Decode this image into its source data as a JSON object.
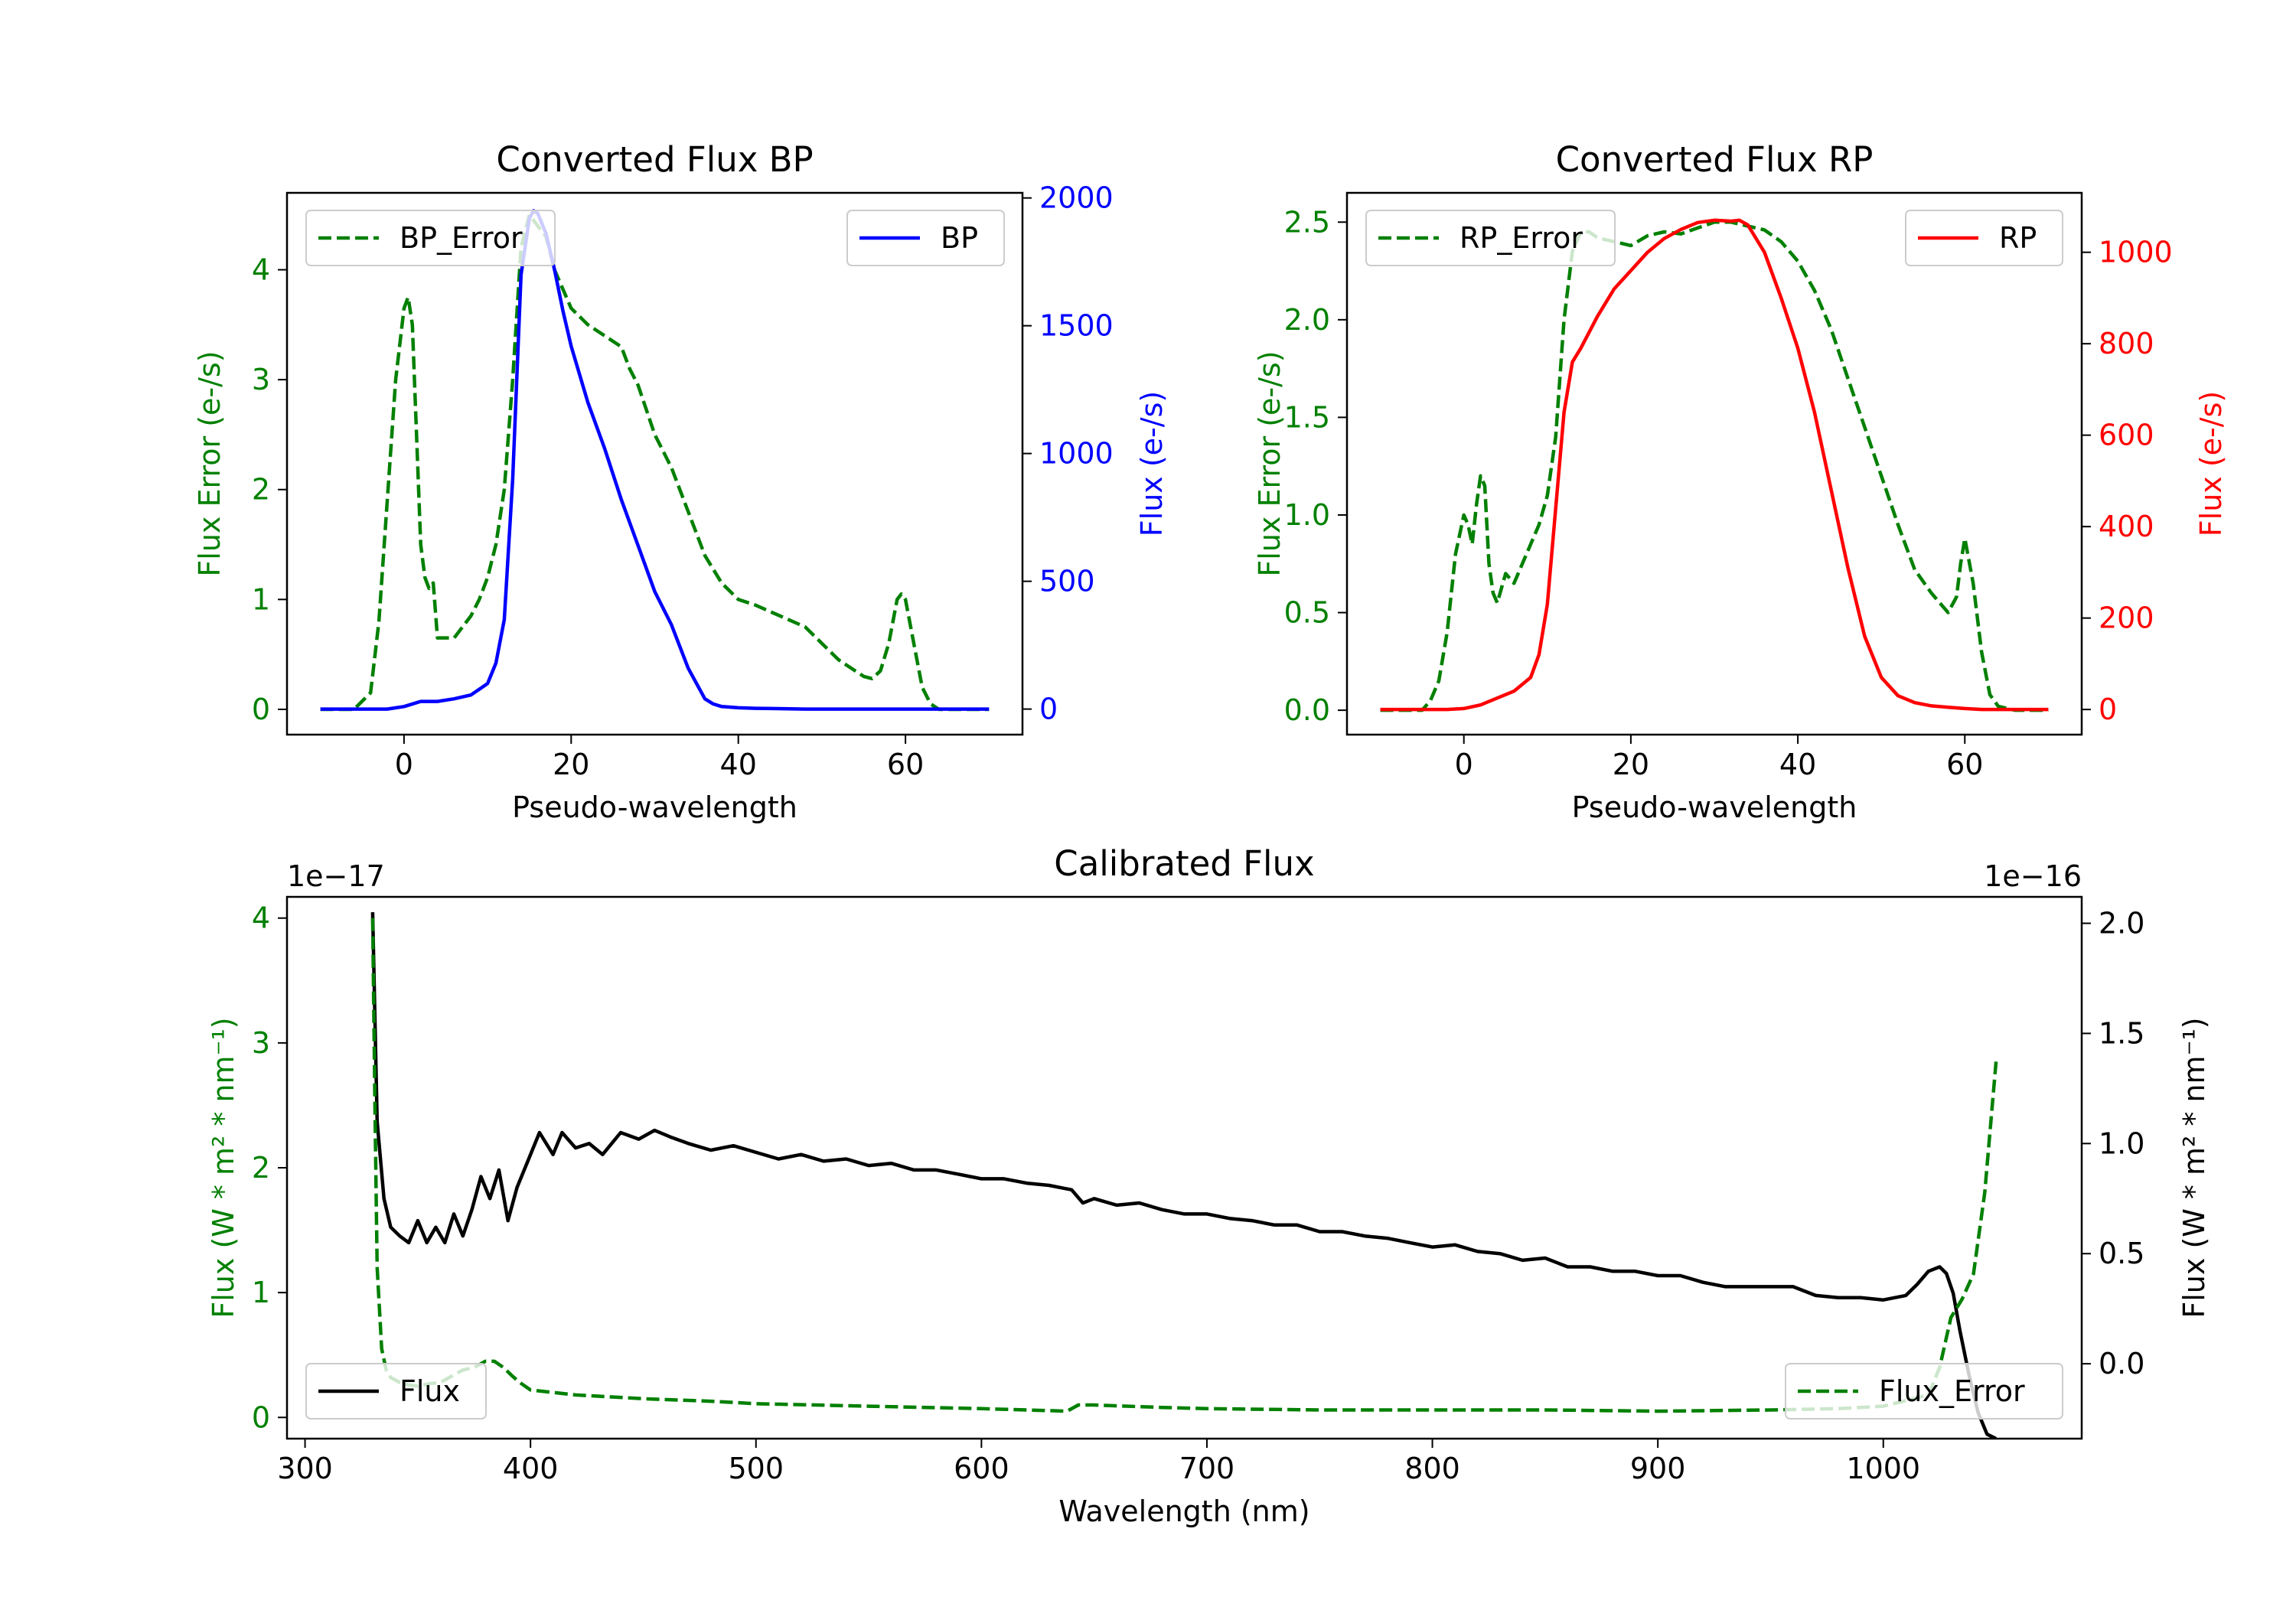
{
  "chart_data": [
    {
      "type": "line",
      "title": "Converted Flux BP",
      "xlabel": "Pseudo-wavelength",
      "xlim": [
        -14,
        74
      ],
      "xticks": [
        0,
        20,
        40,
        60
      ],
      "y_left": {
        "label": "Flux Error (e-/s)",
        "color": "#008000",
        "lim": [
          -0.23,
          4.7
        ],
        "ticks": [
          0,
          1,
          2,
          3,
          4
        ]
      },
      "y_right": {
        "label": "Flux (e-/s)",
        "color": "#0000ff",
        "lim": [
          -100,
          2020
        ],
        "ticks": [
          0,
          500,
          1000,
          1500,
          2000
        ]
      },
      "series": [
        {
          "name": "BP_Error",
          "axis": "left",
          "color": "#008000",
          "dash": true,
          "x": [
            -10,
            -6,
            -4,
            -3,
            -2,
            -1,
            0,
            0.5,
            1,
            2,
            2.5,
            3,
            3.5,
            4,
            5,
            6,
            8,
            9,
            10,
            11,
            12,
            13,
            14,
            15,
            16,
            17,
            18,
            20,
            22,
            24,
            26,
            27,
            28,
            30,
            32,
            34,
            36,
            38,
            40,
            42,
            45,
            48,
            50,
            52,
            54,
            55,
            56,
            57,
            58,
            59,
            59.5,
            60,
            61,
            62,
            63,
            64,
            66,
            70
          ],
          "values": [
            0,
            0,
            0.15,
            0.8,
            1.9,
            3.0,
            3.65,
            3.75,
            3.5,
            1.5,
            1.2,
            1.1,
            1.15,
            0.65,
            0.65,
            0.65,
            0.85,
            1.0,
            1.2,
            1.5,
            2.0,
            3.0,
            4.2,
            4.5,
            4.4,
            4.3,
            4.0,
            3.65,
            3.5,
            3.4,
            3.3,
            3.1,
            2.95,
            2.5,
            2.2,
            1.8,
            1.4,
            1.15,
            1.0,
            0.95,
            0.85,
            0.75,
            0.6,
            0.45,
            0.35,
            0.3,
            0.28,
            0.35,
            0.6,
            1.0,
            1.05,
            1.0,
            0.6,
            0.2,
            0.05,
            0,
            0,
            0
          ]
        },
        {
          "name": "BP",
          "axis": "right",
          "color": "#0000ff",
          "dash": false,
          "x": [
            -10,
            -6,
            -4,
            -2,
            0,
            2,
            4,
            6,
            8,
            10,
            11,
            12,
            13,
            14,
            15,
            15.5,
            16,
            17,
            18,
            19,
            20,
            22,
            24,
            26,
            28,
            30,
            32,
            34,
            36,
            37,
            38,
            40,
            42,
            44,
            46,
            48,
            50,
            52,
            54,
            56,
            58,
            60,
            62,
            66,
            70
          ],
          "values": [
            0,
            0,
            0,
            0,
            10,
            30,
            30,
            40,
            55,
            100,
            180,
            350,
            900,
            1700,
            1920,
            1950,
            1940,
            1860,
            1720,
            1560,
            1420,
            1200,
            1020,
            820,
            640,
            460,
            330,
            160,
            40,
            20,
            10,
            5,
            3,
            2,
            1,
            0,
            0,
            0,
            0,
            0,
            0,
            0,
            0,
            0,
            0
          ]
        }
      ],
      "legend": [
        "BP_Error",
        "BP"
      ]
    },
    {
      "type": "line",
      "title": "Converted Flux RP",
      "xlabel": "Pseudo-wavelength",
      "xlim": [
        -14,
        74
      ],
      "xticks": [
        0,
        20,
        40,
        60
      ],
      "y_left": {
        "label": "Flux Error (e-/s)",
        "color": "#008000",
        "lim": [
          -0.125,
          2.65
        ],
        "ticks": [
          "0.0",
          "0.5",
          "1.0",
          "1.5",
          "2.0",
          "2.5"
        ]
      },
      "y_right": {
        "label": "Flux (e-/s)",
        "color": "#ff0000",
        "lim": [
          -55,
          1130
        ],
        "ticks": [
          0,
          200,
          400,
          600,
          800,
          1000
        ]
      },
      "series": [
        {
          "name": "RP_Error",
          "axis": "left",
          "color": "#008000",
          "dash": true,
          "x": [
            -10,
            -5,
            -4,
            -3,
            -2,
            -1,
            0,
            0.5,
            1,
            1.5,
            2,
            2.5,
            3,
            3.5,
            4,
            5,
            6,
            7,
            8,
            9,
            10,
            11,
            12,
            13,
            14,
            15,
            16,
            18,
            20,
            22,
            24,
            26,
            28,
            30,
            32,
            34,
            36,
            38,
            40,
            42,
            44,
            46,
            48,
            50,
            52,
            54,
            56,
            57,
            58,
            59,
            59.5,
            60,
            61,
            62,
            63,
            64,
            66,
            70
          ],
          "values": [
            0,
            0,
            0.05,
            0.15,
            0.4,
            0.8,
            1.0,
            0.95,
            0.85,
            1.05,
            1.2,
            1.15,
            0.75,
            0.6,
            0.55,
            0.7,
            0.65,
            0.75,
            0.85,
            0.95,
            1.1,
            1.4,
            2.0,
            2.35,
            2.45,
            2.45,
            2.42,
            2.4,
            2.38,
            2.43,
            2.45,
            2.44,
            2.47,
            2.5,
            2.5,
            2.48,
            2.46,
            2.4,
            2.3,
            2.15,
            1.95,
            1.7,
            1.45,
            1.2,
            0.95,
            0.72,
            0.6,
            0.55,
            0.5,
            0.58,
            0.75,
            0.88,
            0.65,
            0.3,
            0.08,
            0.02,
            0,
            0
          ]
        },
        {
          "name": "RP",
          "axis": "right",
          "color": "#ff0000",
          "dash": false,
          "x": [
            -10,
            -6,
            -4,
            -2,
            0,
            2,
            4,
            6,
            8,
            9,
            10,
            11,
            12,
            13,
            14,
            16,
            18,
            20,
            22,
            24,
            26,
            28,
            30,
            32,
            33,
            34,
            36,
            38,
            40,
            42,
            44,
            46,
            48,
            50,
            52,
            54,
            56,
            58,
            60,
            62,
            66,
            70
          ],
          "values": [
            0,
            0,
            0,
            0,
            2,
            10,
            25,
            40,
            70,
            120,
            230,
            440,
            650,
            760,
            790,
            860,
            920,
            960,
            1000,
            1030,
            1050,
            1065,
            1070,
            1068,
            1070,
            1060,
            1000,
            900,
            790,
            650,
            480,
            310,
            160,
            70,
            30,
            15,
            8,
            5,
            2,
            0,
            0,
            0
          ]
        }
      ],
      "legend": [
        "RP_Error",
        "RP"
      ]
    },
    {
      "type": "line",
      "title": "Calibrated Flux",
      "xlabel": "Wavelength (nm)",
      "xlim": [
        292,
        1088
      ],
      "xticks": [
        300,
        400,
        500,
        600,
        700,
        800,
        900,
        1000
      ],
      "y_left": {
        "label": "Flux (W * m$^2$ * nm$^{-1}$)",
        "display_label": "Flux (W * m² * nm⁻¹)",
        "color": "#008000",
        "lim": [
          -0.17,
          4.17
        ],
        "ticks": [
          0,
          1,
          2,
          3,
          4
        ],
        "offset": "1e−17"
      },
      "y_right": {
        "label": "Flux (W * m$^2$ * nm$^{-1}$)",
        "display_label": "Flux (W * m² * nm⁻¹)",
        "color": "#000000",
        "lim": [
          -0.34,
          2.12
        ],
        "ticks": [
          "0.0",
          "0.5",
          "1.0",
          "1.5",
          "2.0"
        ],
        "offset": "1e−16"
      },
      "series": [
        {
          "name": "Flux",
          "axis": "right",
          "color": "#000000",
          "dash": false,
          "x": [
            330,
            332,
            335,
            338,
            342,
            346,
            350,
            354,
            358,
            362,
            366,
            370,
            374,
            378,
            382,
            386,
            390,
            394,
            398,
            404,
            410,
            414,
            420,
            426,
            432,
            440,
            448,
            455,
            462,
            470,
            480,
            490,
            500,
            510,
            520,
            530,
            540,
            550,
            560,
            570,
            580,
            590,
            600,
            610,
            620,
            630,
            640,
            645,
            650,
            660,
            670,
            680,
            690,
            700,
            710,
            720,
            730,
            740,
            750,
            760,
            770,
            780,
            790,
            800,
            810,
            820,
            830,
            840,
            850,
            860,
            870,
            880,
            890,
            900,
            910,
            920,
            930,
            940,
            950,
            960,
            970,
            980,
            990,
            1000,
            1010,
            1015,
            1020,
            1025,
            1028,
            1031,
            1034,
            1038,
            1042,
            1046,
            1050
          ],
          "values": [
            2.05,
            1.1,
            0.75,
            0.62,
            0.58,
            0.55,
            0.65,
            0.55,
            0.62,
            0.55,
            0.68,
            0.58,
            0.7,
            0.85,
            0.75,
            0.88,
            0.65,
            0.8,
            0.9,
            1.05,
            0.95,
            1.05,
            0.98,
            1.0,
            0.95,
            1.05,
            1.02,
            1.06,
            1.03,
            1.0,
            0.97,
            0.99,
            0.96,
            0.93,
            0.95,
            0.92,
            0.93,
            0.9,
            0.91,
            0.88,
            0.88,
            0.86,
            0.84,
            0.84,
            0.82,
            0.81,
            0.79,
            0.73,
            0.75,
            0.72,
            0.73,
            0.7,
            0.68,
            0.68,
            0.66,
            0.65,
            0.63,
            0.63,
            0.6,
            0.6,
            0.58,
            0.57,
            0.55,
            0.53,
            0.54,
            0.51,
            0.5,
            0.47,
            0.48,
            0.44,
            0.44,
            0.42,
            0.42,
            0.4,
            0.4,
            0.37,
            0.35,
            0.35,
            0.35,
            0.35,
            0.31,
            0.3,
            0.3,
            0.29,
            0.31,
            0.36,
            0.42,
            0.44,
            0.41,
            0.32,
            0.15,
            -0.05,
            -0.22,
            -0.32,
            -0.34
          ]
        },
        {
          "name": "Flux_Error",
          "axis": "left",
          "color": "#008000",
          "dash": true,
          "x": [
            330,
            331,
            332,
            334,
            336,
            338,
            342,
            346,
            350,
            355,
            360,
            365,
            370,
            375,
            380,
            384,
            388,
            392,
            396,
            400,
            410,
            420,
            430,
            450,
            480,
            500,
            550,
            600,
            620,
            638,
            643,
            650,
            680,
            700,
            750,
            800,
            850,
            900,
            950,
            980,
            1000,
            1020,
            1025,
            1030,
            1035,
            1040,
            1045,
            1050
          ],
          "values": [
            4.0,
            2.5,
            1.2,
            0.55,
            0.38,
            0.32,
            0.28,
            0.26,
            0.25,
            0.27,
            0.28,
            0.33,
            0.38,
            0.4,
            0.45,
            0.45,
            0.4,
            0.33,
            0.27,
            0.22,
            0.2,
            0.18,
            0.17,
            0.15,
            0.13,
            0.11,
            0.09,
            0.07,
            0.06,
            0.05,
            0.1,
            0.1,
            0.08,
            0.07,
            0.06,
            0.06,
            0.06,
            0.05,
            0.06,
            0.07,
            0.09,
            0.18,
            0.4,
            0.8,
            0.95,
            1.15,
            1.8,
            2.85
          ]
        }
      ],
      "legend": [
        "Flux",
        "Flux_Error"
      ]
    }
  ]
}
